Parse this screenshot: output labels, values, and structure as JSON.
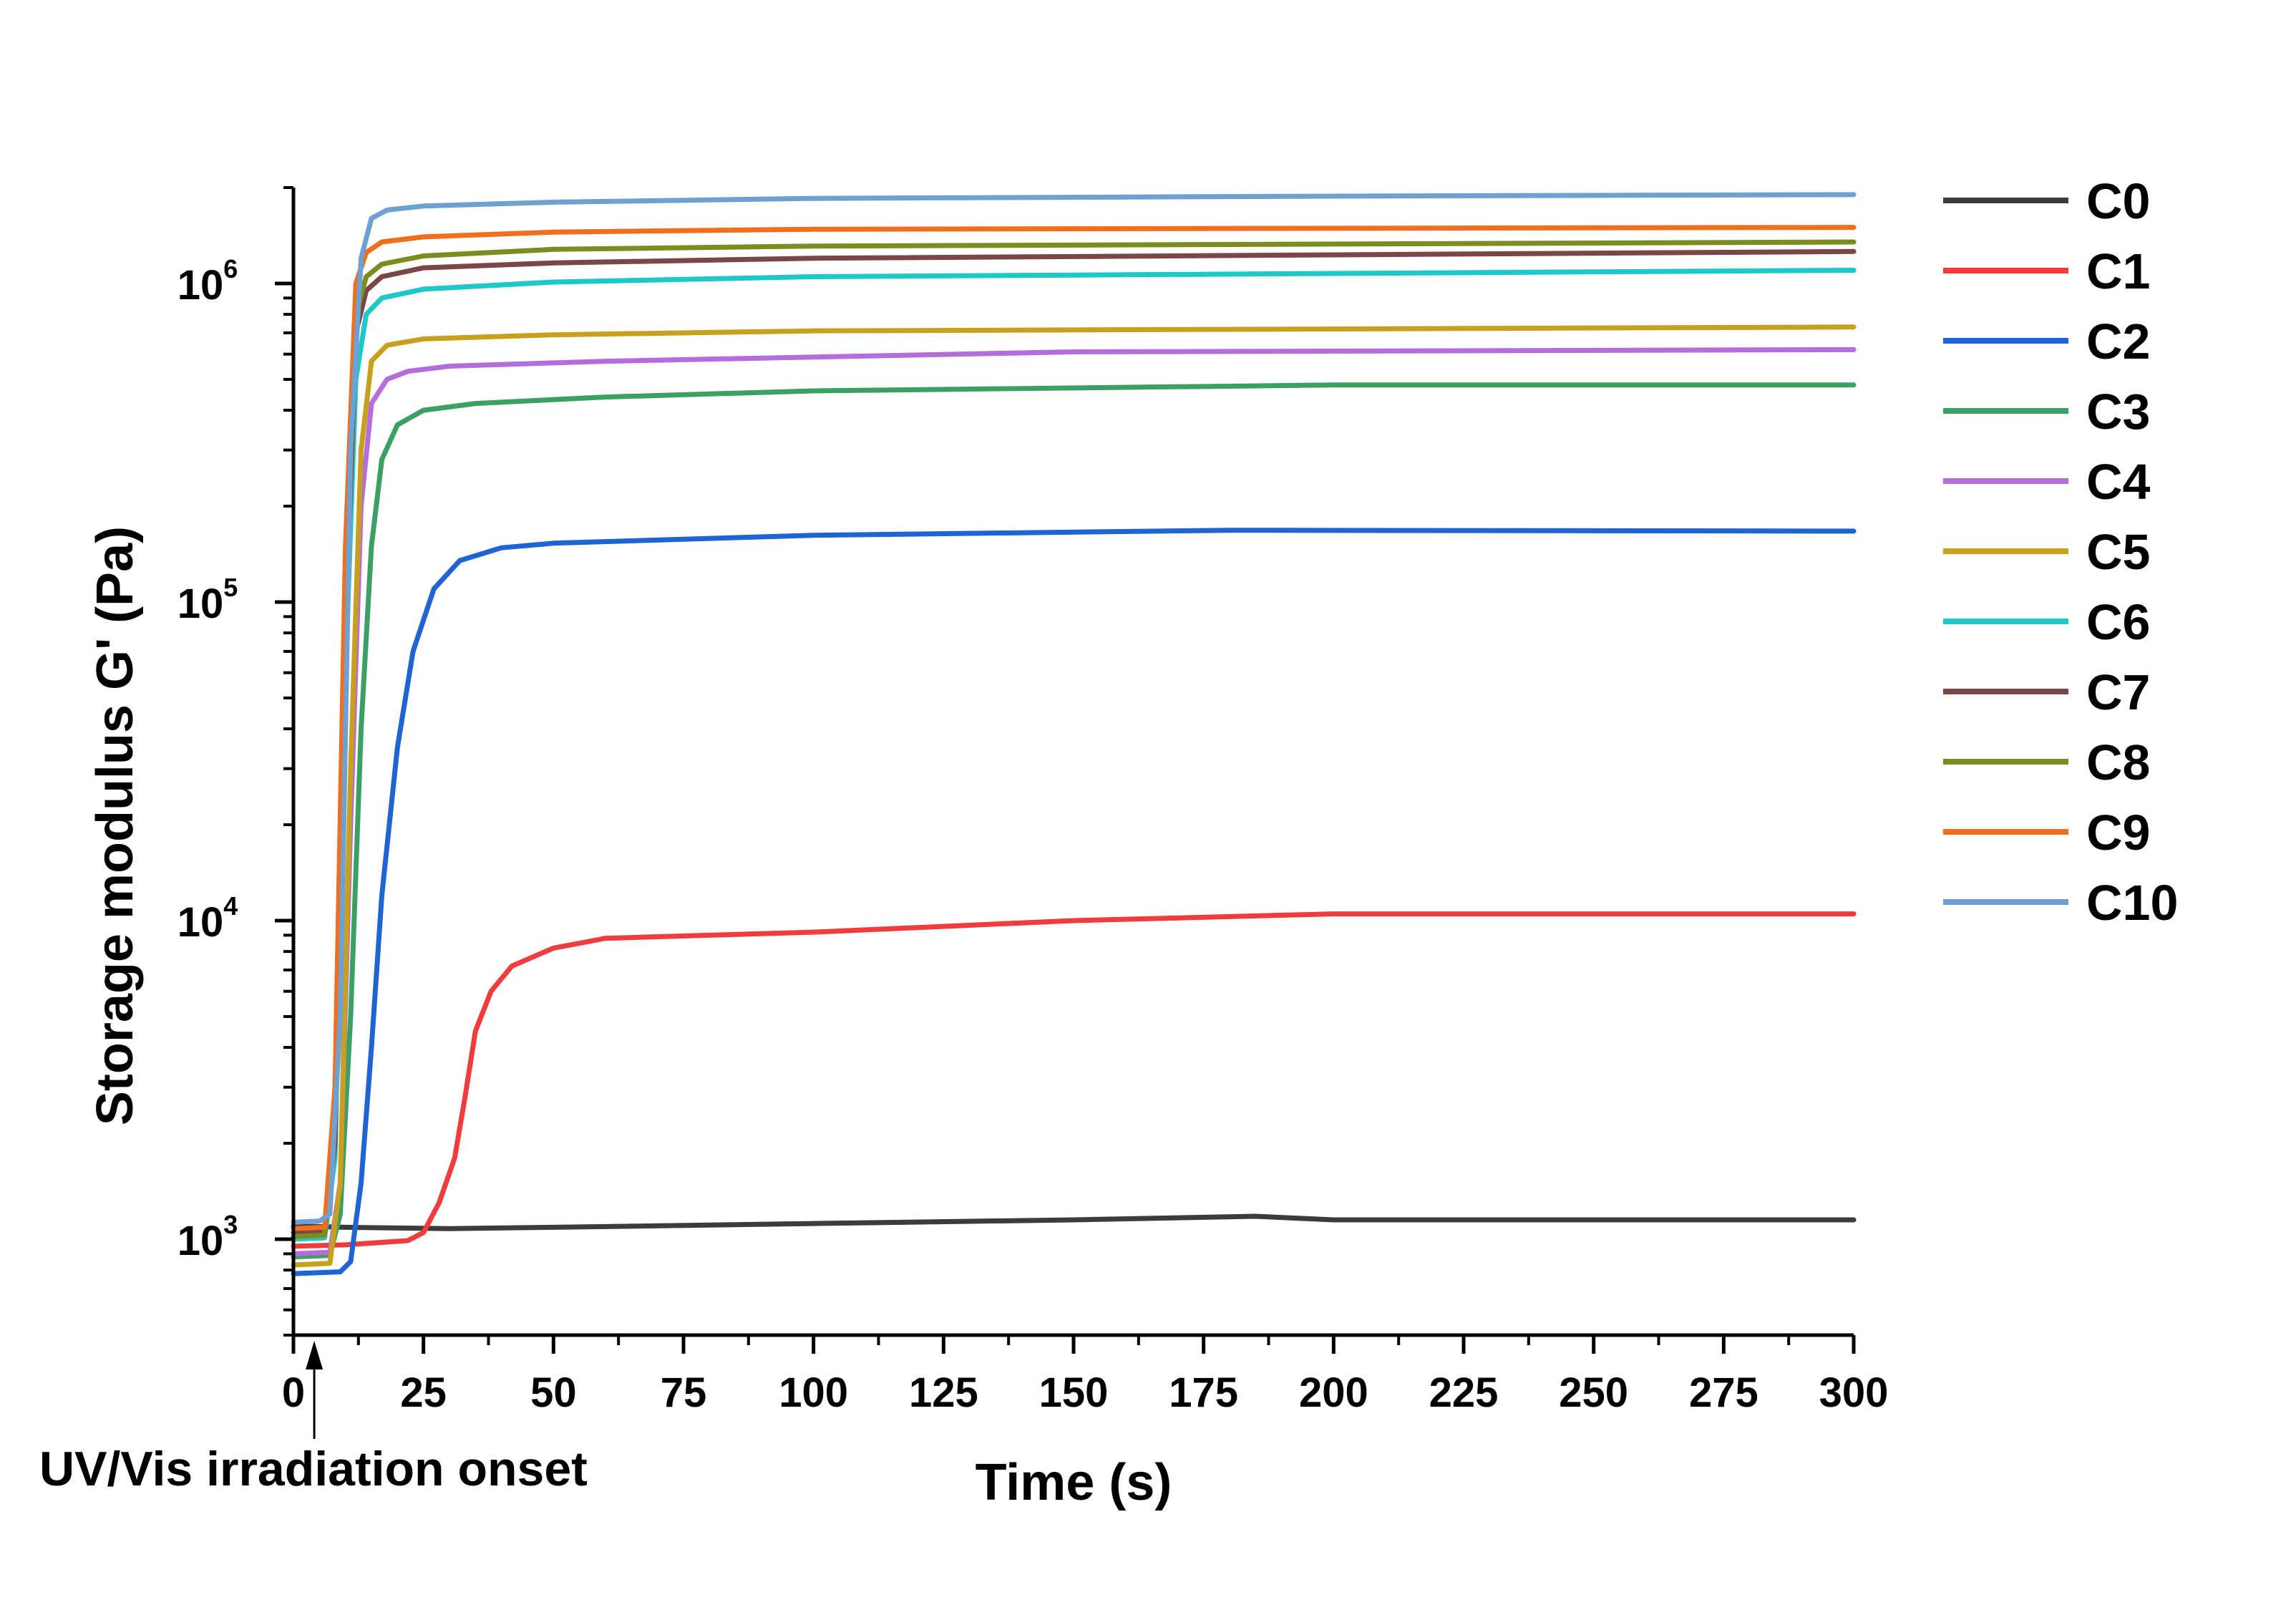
{
  "chart_data": {
    "type": "line",
    "title": "",
    "xlabel": "Time (s)",
    "ylabel": "Storage modulus G' (Pa)",
    "xlim": [
      0,
      300
    ],
    "ylim": [
      500,
      2000000
    ],
    "yscale": "log",
    "grid": false,
    "legend_position": "right",
    "x_ticks": [
      0,
      25,
      50,
      75,
      100,
      125,
      150,
      175,
      200,
      225,
      250,
      275,
      300
    ],
    "x_tick_labels": [
      "0",
      "25",
      "50",
      "75",
      "100",
      "125",
      "150",
      "175",
      "200",
      "225",
      "250",
      "275",
      "300"
    ],
    "y_ticks": [
      1000,
      10000,
      100000,
      1000000
    ],
    "y_tick_labels": [
      {
        "base": "10",
        "exp": "3"
      },
      {
        "base": "10",
        "exp": "4"
      },
      {
        "base": "10",
        "exp": "5"
      },
      {
        "base": "10",
        "exp": "6"
      }
    ],
    "annotation": {
      "text": "UV/Vis irradiation onset",
      "x": 4
    },
    "series": [
      {
        "name": "C0",
        "color": "#3c3c3c",
        "points": [
          [
            0,
            1100
          ],
          [
            10,
            1090
          ],
          [
            30,
            1080
          ],
          [
            50,
            1090
          ],
          [
            100,
            1120
          ],
          [
            150,
            1150
          ],
          [
            185,
            1180
          ],
          [
            200,
            1150
          ],
          [
            250,
            1150
          ],
          [
            300,
            1150
          ]
        ]
      },
      {
        "name": "C1",
        "color": "#f03c3c",
        "points": [
          [
            0,
            950
          ],
          [
            10,
            960
          ],
          [
            22,
            990
          ],
          [
            25,
            1050
          ],
          [
            28,
            1300
          ],
          [
            31,
            1800
          ],
          [
            33,
            2800
          ],
          [
            35,
            4500
          ],
          [
            38,
            6000
          ],
          [
            42,
            7200
          ],
          [
            50,
            8200
          ],
          [
            60,
            8800
          ],
          [
            100,
            9200
          ],
          [
            150,
            10000
          ],
          [
            200,
            10500
          ],
          [
            300,
            10500
          ]
        ]
      },
      {
        "name": "C2",
        "color": "#1e64d2",
        "points": [
          [
            0,
            780
          ],
          [
            9,
            790
          ],
          [
            11,
            850
          ],
          [
            13,
            1500
          ],
          [
            15,
            4000
          ],
          [
            17,
            12000
          ],
          [
            20,
            35000
          ],
          [
            23,
            70000
          ],
          [
            27,
            110000
          ],
          [
            32,
            135000
          ],
          [
            40,
            148000
          ],
          [
            50,
            153000
          ],
          [
            100,
            162000
          ],
          [
            180,
            168000
          ],
          [
            300,
            167000
          ]
        ]
      },
      {
        "name": "C3",
        "color": "#3ca064",
        "points": [
          [
            0,
            880
          ],
          [
            7,
            890
          ],
          [
            9,
            1200
          ],
          [
            11,
            5000
          ],
          [
            13,
            40000
          ],
          [
            15,
            150000
          ],
          [
            17,
            280000
          ],
          [
            20,
            360000
          ],
          [
            25,
            400000
          ],
          [
            35,
            420000
          ],
          [
            60,
            440000
          ],
          [
            100,
            460000
          ],
          [
            200,
            480000
          ],
          [
            300,
            480000
          ]
        ]
      },
      {
        "name": "C4",
        "color": "#b46edc",
        "points": [
          [
            0,
            900
          ],
          [
            7,
            910
          ],
          [
            9,
            1500
          ],
          [
            11,
            20000
          ],
          [
            13,
            200000
          ],
          [
            15,
            420000
          ],
          [
            18,
            500000
          ],
          [
            22,
            530000
          ],
          [
            30,
            550000
          ],
          [
            60,
            570000
          ],
          [
            150,
            610000
          ],
          [
            300,
            620000
          ]
        ]
      },
      {
        "name": "C5",
        "color": "#c8a01e",
        "points": [
          [
            0,
            830
          ],
          [
            7,
            840
          ],
          [
            9,
            1500
          ],
          [
            11,
            30000
          ],
          [
            13,
            300000
          ],
          [
            15,
            570000
          ],
          [
            18,
            640000
          ],
          [
            25,
            670000
          ],
          [
            50,
            690000
          ],
          [
            100,
            710000
          ],
          [
            300,
            730000
          ]
        ]
      },
      {
        "name": "C6",
        "color": "#1ec8c8",
        "points": [
          [
            0,
            1000
          ],
          [
            6,
            1010
          ],
          [
            8,
            1800
          ],
          [
            10,
            60000
          ],
          [
            12,
            500000
          ],
          [
            14,
            800000
          ],
          [
            17,
            900000
          ],
          [
            25,
            960000
          ],
          [
            50,
            1010000
          ],
          [
            100,
            1050000
          ],
          [
            300,
            1100000
          ]
        ]
      },
      {
        "name": "C7",
        "color": "#7a4646",
        "points": [
          [
            0,
            1050
          ],
          [
            6,
            1060
          ],
          [
            8,
            2000
          ],
          [
            10,
            80000
          ],
          [
            12,
            700000
          ],
          [
            14,
            950000
          ],
          [
            17,
            1050000
          ],
          [
            25,
            1120000
          ],
          [
            50,
            1160000
          ],
          [
            100,
            1200000
          ],
          [
            300,
            1260000
          ]
        ]
      },
      {
        "name": "C8",
        "color": "#7d8c1e",
        "points": [
          [
            0,
            1020
          ],
          [
            6,
            1030
          ],
          [
            8,
            2500
          ],
          [
            10,
            100000
          ],
          [
            12,
            800000
          ],
          [
            14,
            1050000
          ],
          [
            17,
            1150000
          ],
          [
            25,
            1220000
          ],
          [
            50,
            1280000
          ],
          [
            100,
            1310000
          ],
          [
            300,
            1350000
          ]
        ]
      },
      {
        "name": "C9",
        "color": "#f06e1e",
        "points": [
          [
            0,
            1080
          ],
          [
            6,
            1090
          ],
          [
            8,
            3000
          ],
          [
            10,
            150000
          ],
          [
            12,
            1000000
          ],
          [
            14,
            1250000
          ],
          [
            17,
            1350000
          ],
          [
            25,
            1400000
          ],
          [
            50,
            1450000
          ],
          [
            100,
            1480000
          ],
          [
            300,
            1500000
          ]
        ]
      },
      {
        "name": "C10",
        "color": "#6ea0d2",
        "points": [
          [
            0,
            1130
          ],
          [
            5,
            1140
          ],
          [
            7,
            1200
          ],
          [
            9,
            5000
          ],
          [
            11,
            300000
          ],
          [
            13,
            1200000
          ],
          [
            15,
            1600000
          ],
          [
            18,
            1700000
          ],
          [
            25,
            1750000
          ],
          [
            50,
            1800000
          ],
          [
            100,
            1850000
          ],
          [
            200,
            1880000
          ],
          [
            300,
            1900000
          ]
        ]
      }
    ]
  }
}
